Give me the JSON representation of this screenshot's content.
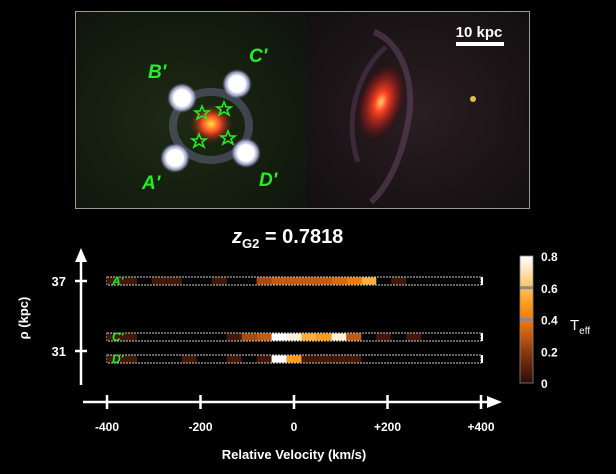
{
  "image_panel": {
    "scale_bar_label": "10 kpc",
    "image_labels": [
      "A'",
      "B'",
      "C'",
      "D'"
    ]
  },
  "redshift_label": {
    "symbol": "z",
    "subscript": "G2",
    "value_text": " = 0.7818"
  },
  "chart_data": {
    "type": "heatmap",
    "xlabel": "Relative Velocity (km/s)",
    "x_ticks": [
      "-400",
      "-200",
      "0",
      "+200",
      "+400"
    ],
    "x_tick_values": [
      -400,
      -200,
      0,
      200,
      400
    ],
    "xlim": [
      -440,
      440
    ],
    "ylabel": "ρ  (kpc)",
    "y_ticks": [
      "37",
      "31"
    ],
    "colorbar": {
      "label": "T",
      "label_sub": "eff",
      "ticks": [
        "0.8",
        "0.6",
        "0.4",
        "0.2",
        "0"
      ],
      "tick_values": [
        0.8,
        0.6,
        0.4,
        0.2,
        0
      ],
      "range": [
        0,
        0.8
      ],
      "marks": [
        0.6,
        0.4
      ],
      "colors": [
        "#2a0d06",
        "#5a200a",
        "#8a3a10",
        "#c25a10",
        "#f07a08",
        "#ff9a1a",
        "#ffc060",
        "#ffe0b0",
        "#ffffff"
      ]
    },
    "rows": [
      {
        "label": "A'",
        "bin_width": 32,
        "start": -400,
        "values": [
          0.05,
          0.05,
          0,
          0.05,
          0.05,
          0,
          0,
          0.05,
          0,
          0,
          0.25,
          0.3,
          0.3,
          0.3,
          0.3,
          0.35,
          0.4,
          0.55,
          0,
          0.05,
          0,
          0,
          0,
          0,
          0
        ]
      },
      {
        "label": "C'",
        "bin_width": 32,
        "start": -400,
        "values": [
          0.05,
          0.05,
          0,
          0,
          0,
          0,
          0,
          0,
          0.05,
          0.25,
          0.3,
          0.8,
          0.75,
          0.55,
          0.5,
          0.75,
          0.3,
          0,
          0.05,
          0,
          0.05,
          0,
          0,
          0,
          0
        ]
      },
      {
        "label": "D'",
        "bin_width": 32,
        "start": -400,
        "values": [
          0.05,
          0.05,
          0,
          0,
          0,
          0.05,
          0,
          0,
          0.05,
          0,
          0.05,
          0.8,
          0.5,
          0.05,
          0.05,
          0.05,
          0.05,
          0,
          0,
          0,
          0,
          0,
          0,
          0,
          0
        ]
      }
    ]
  }
}
